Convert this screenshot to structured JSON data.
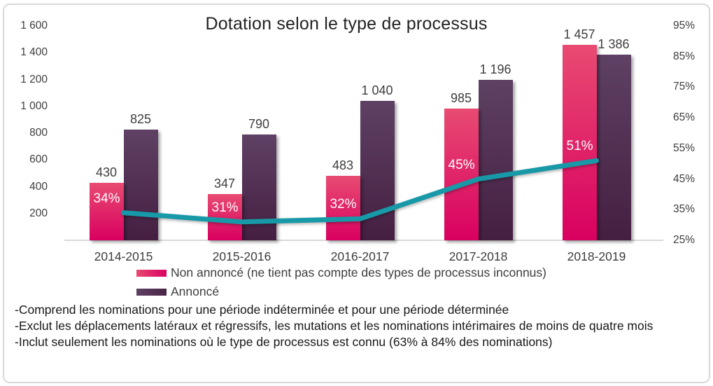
{
  "chart_data": {
    "type": "combo-bar-line",
    "title": "Dotation selon le type de processus",
    "categories": [
      "2014-2015",
      "2015-2016",
      "2016-2017",
      "2017-2018",
      "2018-2019"
    ],
    "series": [
      {
        "name": "Non annoncé (ne tient pas compte des types de processus inconnus)",
        "type": "bar",
        "axis": "left",
        "values": [
          430,
          347,
          483,
          985,
          1457
        ],
        "value_labels": [
          "430",
          "347",
          "483",
          "985",
          "1 457"
        ],
        "color_top": "#e84b72",
        "color_bottom": "#d90060"
      },
      {
        "name": "Annoncé",
        "type": "bar",
        "axis": "left",
        "values": [
          825,
          790,
          1040,
          1196,
          1386
        ],
        "value_labels": [
          "825",
          "790",
          "1 040",
          "1 196",
          "1 386"
        ],
        "color_top": "#5e4164",
        "color_bottom": "#451f42"
      },
      {
        "type": "line",
        "axis": "right",
        "values": [
          34,
          31,
          32,
          45,
          51
        ],
        "point_labels": [
          "34%",
          "31%",
          "32%",
          "45%",
          "51%"
        ],
        "color": "#1799a7"
      }
    ],
    "left_axis": {
      "min": 0,
      "max": 1600,
      "step": 200,
      "tick_values": [
        1600,
        1400,
        1200,
        1000,
        800,
        600,
        400,
        200
      ],
      "tick_labels": [
        "1 600",
        "1 400",
        "1 200",
        "1 000",
        "800",
        "600",
        "400",
        "200"
      ]
    },
    "right_axis": {
      "min": 25,
      "max": 95,
      "step": 10,
      "tick_values": [
        95,
        85,
        75,
        65,
        55,
        45,
        35,
        25
      ],
      "tick_labels": [
        "95%",
        "85%",
        "75%",
        "65%",
        "55%",
        "45%",
        "35%",
        "25%"
      ]
    },
    "legend_position": "bottom-left",
    "grid": false
  },
  "footnotes": [
    "-Comprend les nominations pour une période indéterminée et pour une période déterminée",
    "-Exclut les déplacements latéraux et régressifs, les mutations et les nominations intérimaires de moins de quatre mois",
    "-Inclut seulement les nominations où le type de processus est connu (63% à 84% des nominations)"
  ],
  "colors": {
    "bar_non_annonce_top": "#e84b72",
    "bar_non_annonce_bottom": "#d90060",
    "bar_annonce_top": "#5e4164",
    "bar_annonce_bottom": "#451f42",
    "trend_line": "#1799a7",
    "axis_text": "#3d3d3d",
    "axis_line": "#d9d9d9"
  }
}
